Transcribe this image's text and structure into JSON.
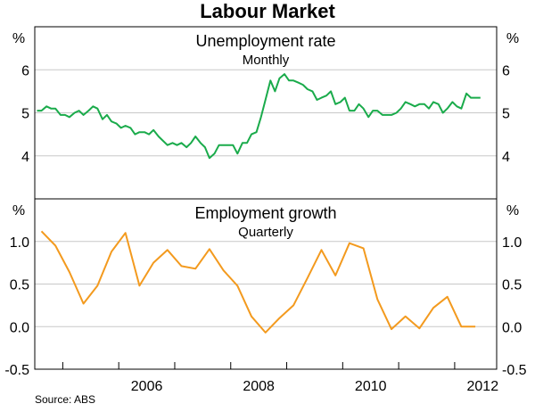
{
  "title": "Labour Market",
  "source": "Source: ABS",
  "colors": {
    "unemployment": "#1aab4b",
    "employment": "#f39a1e",
    "axis": "#000000",
    "grid": "#c8c8c8"
  },
  "chart_data": [
    {
      "type": "line",
      "title": "Unemployment rate",
      "subtitle": "Monthly",
      "unit_label": "%",
      "ylim": [
        3,
        7
      ],
      "yticks": [
        4,
        5,
        6
      ],
      "ytick_labels": [
        "4",
        "5",
        "6"
      ],
      "xlim": [
        2004.5,
        2012.75
      ],
      "x_tick_labels": [
        "2006",
        "2008",
        "2010",
        "2012"
      ],
      "grid": true,
      "series": [
        {
          "x": [
            2004.54,
            2004.62,
            2004.71,
            2004.79,
            2004.87,
            2004.96,
            2005.04,
            2005.12,
            2005.21,
            2005.29,
            2005.37,
            2005.46,
            2005.54,
            2005.62,
            2005.71,
            2005.79,
            2005.87,
            2005.96,
            2006.04,
            2006.12,
            2006.21,
            2006.29,
            2006.37,
            2006.46,
            2006.54,
            2006.62,
            2006.71,
            2006.79,
            2006.87,
            2006.96,
            2007.04,
            2007.12,
            2007.21,
            2007.29,
            2007.37,
            2007.46,
            2007.54,
            2007.62,
            2007.71,
            2007.79,
            2007.87,
            2007.96,
            2008.04,
            2008.12,
            2008.21,
            2008.29,
            2008.37,
            2008.46,
            2008.54,
            2008.62,
            2008.71,
            2008.79,
            2008.87,
            2008.96,
            2009.04,
            2009.12,
            2009.21,
            2009.29,
            2009.37,
            2009.46,
            2009.54,
            2009.62,
            2009.71,
            2009.79,
            2009.87,
            2009.96,
            2010.04,
            2010.12,
            2010.21,
            2010.29,
            2010.37,
            2010.46,
            2010.54,
            2010.62,
            2010.71,
            2010.79,
            2010.87,
            2010.96,
            2011.04,
            2011.12,
            2011.21,
            2011.29,
            2011.37,
            2011.46,
            2011.54,
            2011.62,
            2011.71,
            2011.79,
            2011.87,
            2011.96,
            2012.04,
            2012.12,
            2012.21,
            2012.29,
            2012.37,
            2012.46
          ],
          "values": [
            5.05,
            5.05,
            5.15,
            5.1,
            5.1,
            4.95,
            4.95,
            4.9,
            5.0,
            5.05,
            4.95,
            5.05,
            5.15,
            5.1,
            4.85,
            4.95,
            4.8,
            4.75,
            4.65,
            4.7,
            4.65,
            4.5,
            4.55,
            4.55,
            4.5,
            4.6,
            4.45,
            4.35,
            4.25,
            4.3,
            4.25,
            4.3,
            4.2,
            4.3,
            4.45,
            4.3,
            4.2,
            3.95,
            4.05,
            4.25,
            4.25,
            4.25,
            4.25,
            4.05,
            4.3,
            4.3,
            4.5,
            4.55,
            4.9,
            5.3,
            5.75,
            5.5,
            5.8,
            5.9,
            5.75,
            5.75,
            5.7,
            5.65,
            5.55,
            5.5,
            5.3,
            5.35,
            5.4,
            5.5,
            5.2,
            5.25,
            5.35,
            5.05,
            5.05,
            5.2,
            5.1,
            4.9,
            5.05,
            5.05,
            4.95,
            4.95,
            4.95,
            5.0,
            5.1,
            5.25,
            5.2,
            5.15,
            5.2,
            5.2,
            5.1,
            5.25,
            5.2,
            5.0,
            5.1,
            5.25,
            5.15,
            5.1,
            5.45,
            5.35,
            5.35,
            5.35
          ]
        }
      ]
    },
    {
      "type": "line",
      "title": "Employment growth",
      "subtitle": "Quarterly",
      "unit_label": "%",
      "ylim": [
        -0.5,
        1.5
      ],
      "yticks": [
        -0.5,
        0.0,
        0.5,
        1.0
      ],
      "ytick_labels": [
        "-0.5",
        "0.0",
        "0.5",
        "1.0"
      ],
      "xlim": [
        2004.5,
        2012.75
      ],
      "x_tick_labels": [
        "2006",
        "2008",
        "2010",
        "2012"
      ],
      "grid": true,
      "series": [
        {
          "x": [
            2004.62,
            2004.87,
            2005.12,
            2005.37,
            2005.62,
            2005.87,
            2006.12,
            2006.37,
            2006.62,
            2006.87,
            2007.12,
            2007.37,
            2007.62,
            2007.87,
            2008.12,
            2008.37,
            2008.62,
            2008.87,
            2009.12,
            2009.37,
            2009.62,
            2009.87,
            2010.12,
            2010.37,
            2010.62,
            2010.87,
            2011.12,
            2011.37,
            2011.62,
            2011.87,
            2012.12,
            2012.37
          ],
          "values": [
            1.12,
            0.95,
            0.64,
            0.27,
            0.48,
            0.88,
            1.1,
            0.48,
            0.75,
            0.9,
            0.71,
            0.68,
            0.91,
            0.66,
            0.48,
            0.12,
            -0.07,
            0.1,
            0.25,
            0.57,
            0.9,
            0.6,
            0.98,
            0.92,
            0.32,
            -0.03,
            0.12,
            -0.02,
            0.22,
            0.35,
            0.0,
            0.0
          ]
        }
      ]
    }
  ]
}
